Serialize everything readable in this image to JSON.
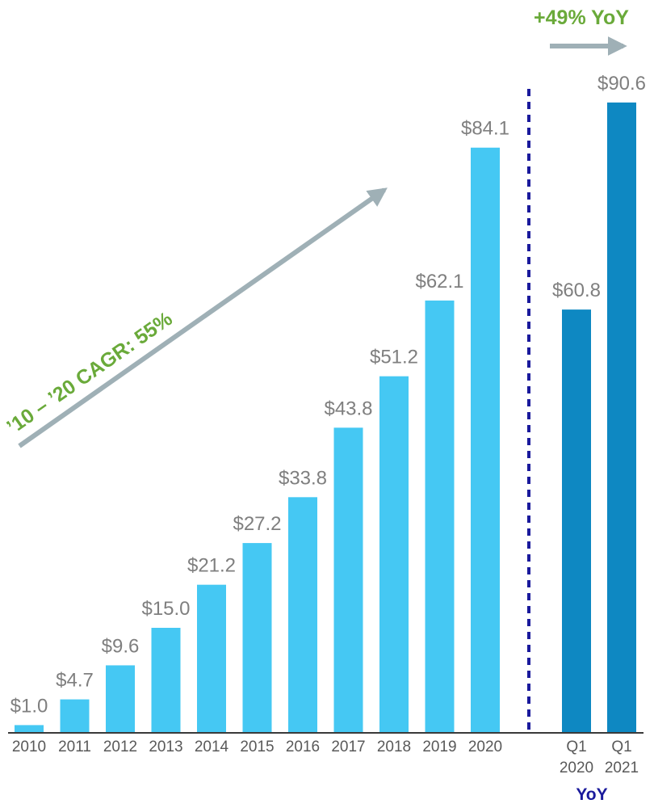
{
  "chart_data": {
    "type": "bar",
    "annual": {
      "categories": [
        "2010",
        "2011",
        "2012",
        "2013",
        "2014",
        "2015",
        "2016",
        "2017",
        "2018",
        "2019",
        "2020"
      ],
      "values": [
        1.0,
        4.7,
        9.6,
        15.0,
        21.2,
        27.2,
        33.8,
        43.8,
        51.2,
        62.1,
        84.1
      ],
      "labels": [
        "$1.0",
        "$4.7",
        "$9.6",
        "$15.0",
        "$21.2",
        "$27.2",
        "$33.8",
        "$43.8",
        "$51.2",
        "$62.1",
        "$84.1"
      ],
      "color": "#45c8f3"
    },
    "quarterly": {
      "categories": [
        [
          "Q1",
          "2020"
        ],
        [
          "Q1",
          "2021"
        ]
      ],
      "values": [
        60.8,
        90.6
      ],
      "labels": [
        "$60.8",
        "$90.6"
      ],
      "color": "#0e88c2",
      "group_label": "YoY"
    },
    "annotations": {
      "cagr": "’10 – ’20 CAGR: 55%",
      "yoy_growth": "+49% YoY"
    },
    "ylim": [
      0,
      100
    ],
    "grid": false,
    "legend": "none"
  },
  "colors": {
    "green": "#6aaa3a",
    "arrow": "#9fb0b6",
    "divider": "#1a1a9c",
    "axis": "#3a3a3a",
    "value_text": "#7f7f7f",
    "tick_text": "#595959"
  }
}
